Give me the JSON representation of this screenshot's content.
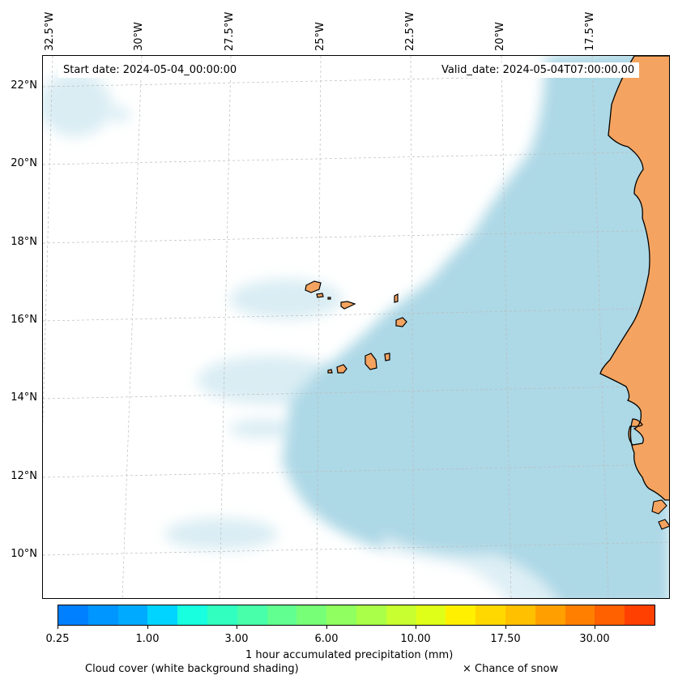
{
  "map": {
    "start_date": "Start date: 2024-05-04_00:00:00",
    "valid_date": "Valid_date: 2024-05-04T07:00:00.00",
    "longitude_labels": [
      "32.5°W",
      "30°W",
      "27.5°W",
      "25°W",
      "22.5°W",
      "20°W",
      "17.5°W"
    ],
    "latitude_labels": [
      "22°N",
      "20°N",
      "18°N",
      "16°N",
      "14°N",
      "12°N",
      "10°N"
    ],
    "colors": {
      "ocean_cloud": "#add8e6",
      "land": "#f4a460",
      "coast": "#000000",
      "gridline": "#bbbbbb"
    },
    "features": [
      {
        "name": "West Africa coast (Senegal, Mauritania, Gambia, Guinea-Bissau)"
      },
      {
        "name": "Cape Verde islands"
      }
    ]
  },
  "colorbar": {
    "colors": [
      "#0080ff",
      "#0096ff",
      "#00aaff",
      "#00d4ff",
      "#18ffe0",
      "#30ffc0",
      "#48ffaa",
      "#60ff90",
      "#78ff78",
      "#90ff60",
      "#aaff48",
      "#c8ff30",
      "#e0ff18",
      "#fff000",
      "#ffd800",
      "#ffc000",
      "#ffa000",
      "#ff8000",
      "#ff6000",
      "#ff4000"
    ],
    "tick_labels": [
      "0.25",
      "1.00",
      "3.00",
      "6.00",
      "10.00",
      "17.50",
      "30.00"
    ],
    "label": "1 hour accumulated precipitation (mm)"
  },
  "legend": {
    "cloud_cover": "Cloud cover (white background shading)",
    "snow": "× Chance of snow"
  }
}
